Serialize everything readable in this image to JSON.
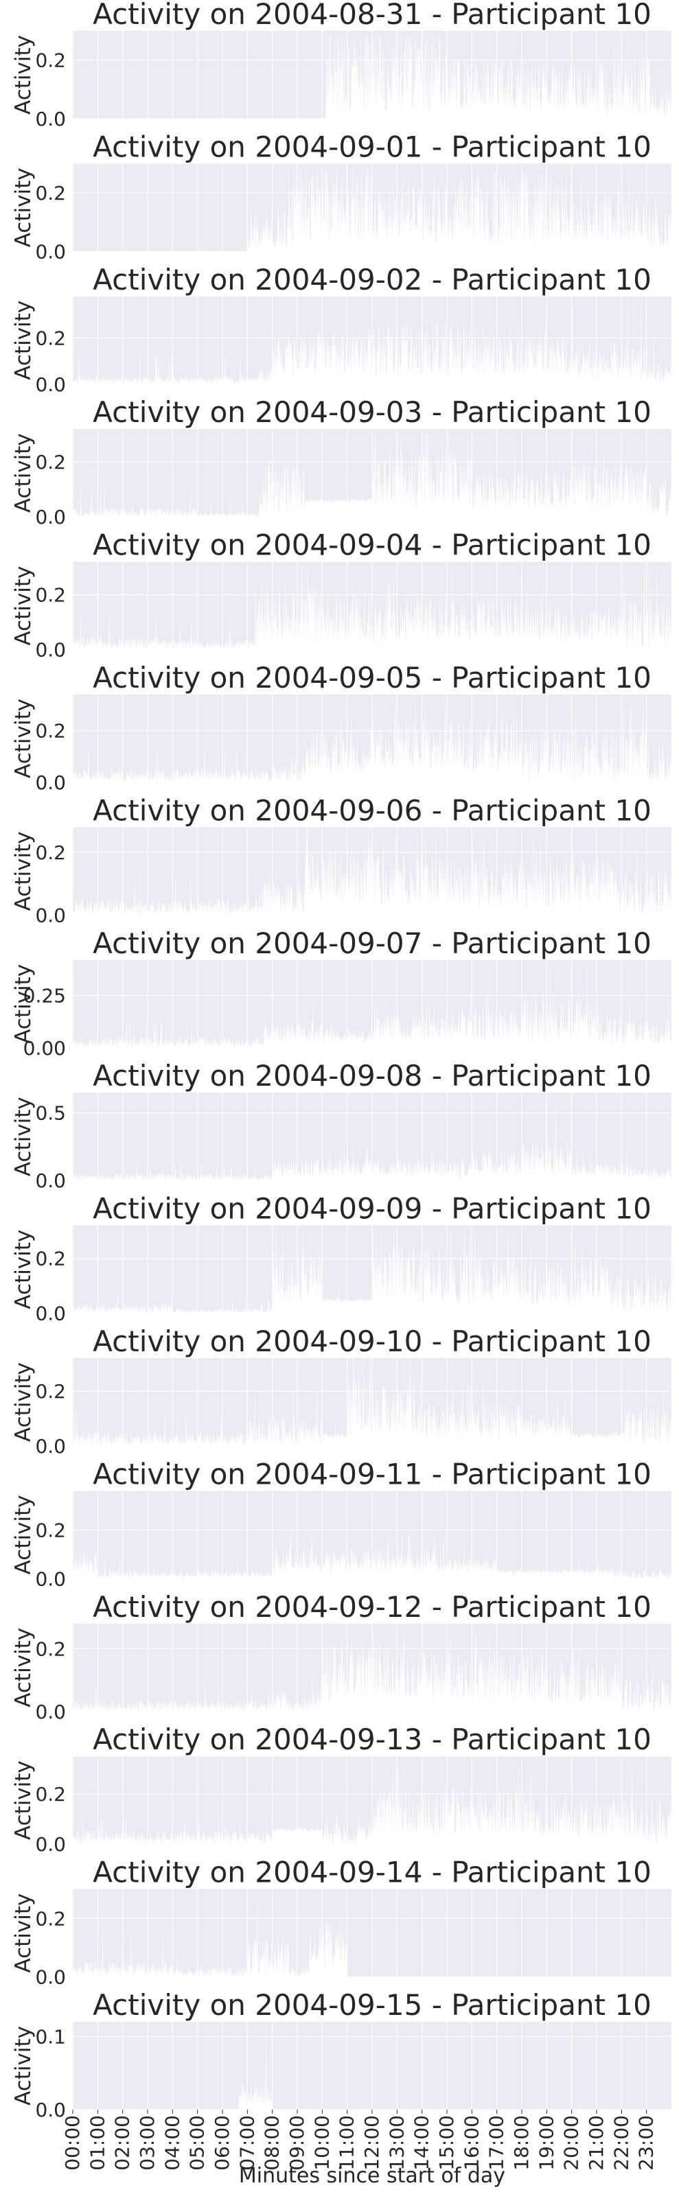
{
  "chart_data": {
    "type": "area",
    "title_template": "Activity on {date} - Participant 10",
    "xlabel": "Minutes since start of day",
    "ylabel": "Activity",
    "xlim": [
      0,
      1440
    ],
    "x_tick_labels": [
      "00:00",
      "01:00",
      "02:00",
      "03:00",
      "04:00",
      "05:00",
      "06:00",
      "07:00",
      "08:00",
      "09:00",
      "10:00",
      "11:00",
      "12:00",
      "13:00",
      "14:00",
      "15:00",
      "16:00",
      "17:00",
      "18:00",
      "19:00",
      "20:00",
      "21:00",
      "22:00",
      "23:00"
    ],
    "grid": true,
    "colors": {
      "background": "#eaeaf2",
      "grid": "#ffffff",
      "fill": "#ffffff",
      "text": "#262626"
    },
    "panels": [
      {
        "title": "Activity on 2004-08-31 - Participant 10",
        "ylim": [
          0,
          0.3
        ],
        "yticks": [
          0.0,
          0.2
        ],
        "ytick_labels": [
          "0.0",
          "0.2"
        ],
        "segments": [
          [
            0,
            0.0,
            0.005,
            0.0
          ],
          [
            610,
            0.02,
            0.18,
            0.28
          ],
          [
            900,
            0.03,
            0.14,
            0.2
          ],
          [
            1080,
            0.02,
            0.12,
            0.18
          ],
          [
            1260,
            0.0,
            0.13,
            0.25
          ],
          [
            1390,
            0.0,
            0.06,
            0.2
          ]
        ]
      },
      {
        "title": "Activity on 2004-09-01 - Participant 10",
        "ylim": [
          0,
          0.3
        ],
        "yticks": [
          0.0,
          0.2
        ],
        "ytick_labels": [
          "0.0",
          "0.2"
        ],
        "segments": [
          [
            0,
            0.0,
            0.004,
            0.0
          ],
          [
            420,
            0.0,
            0.08,
            0.22
          ],
          [
            520,
            0.03,
            0.18,
            0.28
          ],
          [
            720,
            0.03,
            0.14,
            0.25
          ],
          [
            960,
            0.02,
            0.16,
            0.27
          ],
          [
            1200,
            0.02,
            0.12,
            0.25
          ],
          [
            1380,
            0.0,
            0.08,
            0.18
          ]
        ]
      },
      {
        "title": "Activity on 2004-09-02 - Participant 10",
        "ylim": [
          0,
          0.38
        ],
        "yticks": [
          0.0,
          0.2
        ],
        "ytick_labels": [
          "0.0",
          "0.2"
        ],
        "segments": [
          [
            0,
            0.0,
            0.02,
            0.12
          ],
          [
            300,
            0.0,
            0.02,
            0.12
          ],
          [
            440,
            0.0,
            0.04,
            0.1
          ],
          [
            480,
            0.03,
            0.14,
            0.25
          ],
          [
            700,
            0.03,
            0.16,
            0.28
          ],
          [
            1000,
            0.03,
            0.13,
            0.25
          ],
          [
            1200,
            0.0,
            0.1,
            0.35
          ],
          [
            1380,
            0.0,
            0.05,
            0.2
          ]
        ]
      },
      {
        "title": "Activity on 2004-09-03 - Participant 10",
        "ylim": [
          0,
          0.32
        ],
        "yticks": [
          0.0,
          0.2
        ],
        "ytick_labels": [
          "0.0",
          "0.2"
        ],
        "segments": [
          [
            0,
            0.0,
            0.02,
            0.1
          ],
          [
            300,
            0.0,
            0.01,
            0.05
          ],
          [
            450,
            0.0,
            0.12,
            0.25
          ],
          [
            560,
            0.05,
            0.06,
            0.1
          ],
          [
            720,
            0.03,
            0.15,
            0.3
          ],
          [
            960,
            0.02,
            0.1,
            0.22
          ],
          [
            1200,
            0.02,
            0.12,
            0.25
          ],
          [
            1380,
            0.0,
            0.08,
            0.2
          ]
        ]
      },
      {
        "title": "Activity on 2004-09-04 - Participant 10",
        "ylim": [
          0,
          0.32
        ],
        "yticks": [
          0.0,
          0.2
        ],
        "ytick_labels": [
          "0.0",
          "0.2"
        ],
        "segments": [
          [
            0,
            0.0,
            0.03,
            0.12
          ],
          [
            240,
            0.0,
            0.02,
            0.1
          ],
          [
            440,
            0.02,
            0.14,
            0.3
          ],
          [
            600,
            0.02,
            0.12,
            0.25
          ],
          [
            840,
            0.03,
            0.12,
            0.28
          ],
          [
            1080,
            0.02,
            0.1,
            0.22
          ],
          [
            1300,
            0.0,
            0.1,
            0.3
          ]
        ]
      },
      {
        "title": "Activity on 2004-09-05 - Participant 10",
        "ylim": [
          0,
          0.34
        ],
        "yticks": [
          0.0,
          0.2
        ],
        "ytick_labels": [
          "0.0",
          "0.2"
        ],
        "segments": [
          [
            0,
            0.0,
            0.03,
            0.12
          ],
          [
            240,
            0.0,
            0.03,
            0.12
          ],
          [
            480,
            0.0,
            0.04,
            0.1
          ],
          [
            560,
            0.03,
            0.12,
            0.25
          ],
          [
            700,
            0.04,
            0.15,
            0.3
          ],
          [
            900,
            0.03,
            0.15,
            0.28
          ],
          [
            1080,
            0.0,
            0.12,
            0.3
          ],
          [
            1380,
            0.0,
            0.06,
            0.15
          ]
        ]
      },
      {
        "title": "Activity on 2004-09-06 - Participant 10",
        "ylim": [
          0,
          0.28
        ],
        "yticks": [
          0.0,
          0.2
        ],
        "ytick_labels": [
          "0.0",
          "0.2"
        ],
        "segments": [
          [
            0,
            0.0,
            0.03,
            0.12
          ],
          [
            240,
            0.0,
            0.03,
            0.12
          ],
          [
            440,
            0.0,
            0.06,
            0.14
          ],
          [
            560,
            0.03,
            0.14,
            0.28
          ],
          [
            720,
            0.03,
            0.12,
            0.25
          ],
          [
            900,
            0.02,
            0.11,
            0.24
          ],
          [
            1080,
            0.02,
            0.12,
            0.25
          ],
          [
            1300,
            0.0,
            0.08,
            0.2
          ]
        ]
      },
      {
        "title": "Activity on 2004-09-07 - Participant 10",
        "ylim": [
          0,
          0.42
        ],
        "yticks": [
          0.0,
          0.25
        ],
        "ytick_labels": [
          "0.00",
          "0.25"
        ],
        "segments": [
          [
            0,
            0.0,
            0.03,
            0.12
          ],
          [
            240,
            0.0,
            0.03,
            0.1
          ],
          [
            460,
            0.02,
            0.08,
            0.2
          ],
          [
            600,
            0.02,
            0.06,
            0.14
          ],
          [
            720,
            0.03,
            0.1,
            0.22
          ],
          [
            900,
            0.03,
            0.12,
            0.25
          ],
          [
            1080,
            0.02,
            0.16,
            0.4
          ],
          [
            1260,
            0.0,
            0.08,
            0.2
          ]
        ]
      },
      {
        "title": "Activity on 2004-09-08 - Participant 10",
        "ylim": [
          0,
          0.65
        ],
        "yticks": [
          0.0,
          0.5
        ],
        "ytick_labels": [
          "0.0",
          "0.5"
        ],
        "segments": [
          [
            0,
            0.0,
            0.03,
            0.12
          ],
          [
            240,
            0.0,
            0.03,
            0.12
          ],
          [
            480,
            0.02,
            0.1,
            0.25
          ],
          [
            720,
            0.02,
            0.1,
            0.22
          ],
          [
            960,
            0.03,
            0.14,
            0.3
          ],
          [
            1080,
            0.03,
            0.18,
            0.6
          ],
          [
            1200,
            0.02,
            0.08,
            0.2
          ],
          [
            1380,
            0.0,
            0.05,
            0.12
          ]
        ]
      },
      {
        "title": "Activity on 2004-09-09 - Participant 10",
        "ylim": [
          0,
          0.32
        ],
        "yticks": [
          0.0,
          0.2
        ],
        "ytick_labels": [
          "0.0",
          "0.2"
        ],
        "segments": [
          [
            0,
            0.0,
            0.02,
            0.08
          ],
          [
            240,
            0.0,
            0.01,
            0.05
          ],
          [
            480,
            0.03,
            0.14,
            0.3
          ],
          [
            600,
            0.04,
            0.05,
            0.08
          ],
          [
            720,
            0.03,
            0.15,
            0.3
          ],
          [
            900,
            0.03,
            0.14,
            0.3
          ],
          [
            1080,
            0.02,
            0.12,
            0.25
          ],
          [
            1300,
            0.0,
            0.08,
            0.2
          ]
        ]
      },
      {
        "title": "Activity on 2004-09-10 - Participant 10",
        "ylim": [
          0,
          0.32
        ],
        "yticks": [
          0.0,
          0.2
        ],
        "ytick_labels": [
          "0.0",
          "0.2"
        ],
        "segments": [
          [
            0,
            0.0,
            0.03,
            0.12
          ],
          [
            240,
            0.0,
            0.03,
            0.12
          ],
          [
            420,
            0.0,
            0.06,
            0.2
          ],
          [
            600,
            0.03,
            0.04,
            0.08
          ],
          [
            660,
            0.03,
            0.15,
            0.32
          ],
          [
            840,
            0.02,
            0.1,
            0.22
          ],
          [
            1080,
            0.03,
            0.08,
            0.18
          ],
          [
            1200,
            0.03,
            0.04,
            0.06
          ],
          [
            1320,
            0.0,
            0.08,
            0.2
          ]
        ]
      },
      {
        "title": "Activity on 2004-09-11 - Participant 10",
        "ylim": [
          0,
          0.36
        ],
        "yticks": [
          0.0,
          0.2
        ],
        "ytick_labels": [
          "0.0",
          "0.2"
        ],
        "segments": [
          [
            0,
            0.0,
            0.06,
            0.35
          ],
          [
            60,
            0.0,
            0.02,
            0.08
          ],
          [
            300,
            0.0,
            0.02,
            0.08
          ],
          [
            480,
            0.02,
            0.08,
            0.2
          ],
          [
            720,
            0.02,
            0.08,
            0.18
          ],
          [
            900,
            0.02,
            0.06,
            0.15
          ],
          [
            1020,
            0.02,
            0.03,
            0.06
          ],
          [
            1300,
            0.0,
            0.02,
            0.05
          ]
        ]
      },
      {
        "title": "Activity on 2004-09-12 - Participant 10",
        "ylim": [
          0,
          0.28
        ],
        "yticks": [
          0.0,
          0.2
        ],
        "ytick_labels": [
          "0.0",
          "0.2"
        ],
        "segments": [
          [
            0,
            0.0,
            0.02,
            0.08
          ],
          [
            240,
            0.0,
            0.02,
            0.08
          ],
          [
            480,
            0.0,
            0.04,
            0.1
          ],
          [
            600,
            0.03,
            0.14,
            0.25
          ],
          [
            780,
            0.03,
            0.12,
            0.25
          ],
          [
            960,
            0.02,
            0.12,
            0.24
          ],
          [
            1140,
            0.02,
            0.1,
            0.2
          ],
          [
            1320,
            0.0,
            0.06,
            0.15
          ]
        ]
      },
      {
        "title": "Activity on 2004-09-13 - Participant 10",
        "ylim": [
          0,
          0.35
        ],
        "yticks": [
          0.0,
          0.2
        ],
        "ytick_labels": [
          "0.0",
          "0.2"
        ],
        "segments": [
          [
            0,
            0.0,
            0.03,
            0.1
          ],
          [
            240,
            0.0,
            0.03,
            0.1
          ],
          [
            480,
            0.05,
            0.06,
            0.08
          ],
          [
            600,
            0.0,
            0.05,
            0.12
          ],
          [
            720,
            0.03,
            0.14,
            0.3
          ],
          [
            900,
            0.03,
            0.14,
            0.3
          ],
          [
            1080,
            0.02,
            0.12,
            0.27
          ],
          [
            1320,
            0.0,
            0.1,
            0.3
          ]
        ]
      },
      {
        "title": "Activity on 2004-09-14 - Participant 10",
        "ylim": [
          0,
          0.3
        ],
        "yticks": [
          0.0,
          0.2
        ],
        "ytick_labels": [
          "0.0",
          "0.2"
        ],
        "segments": [
          [
            0,
            0.0,
            0.03,
            0.15
          ],
          [
            240,
            0.0,
            0.02,
            0.08
          ],
          [
            420,
            0.0,
            0.08,
            0.25
          ],
          [
            520,
            0.0,
            0.02,
            0.05
          ],
          [
            570,
            0.03,
            0.12,
            0.22
          ],
          [
            660,
            0.0,
            0.0,
            0.0
          ]
        ]
      },
      {
        "title": "Activity on 2004-09-15 - Participant 10",
        "ylim": [
          0,
          0.12
        ],
        "yticks": [
          0.0,
          0.1
        ],
        "ytick_labels": [
          "0.0",
          "0.1"
        ],
        "segments": [
          [
            0,
            0.0,
            0.0,
            0.0
          ],
          [
            400,
            0.0,
            0.02,
            0.1
          ],
          [
            480,
            0.0,
            0.0,
            0.0
          ]
        ]
      }
    ]
  }
}
